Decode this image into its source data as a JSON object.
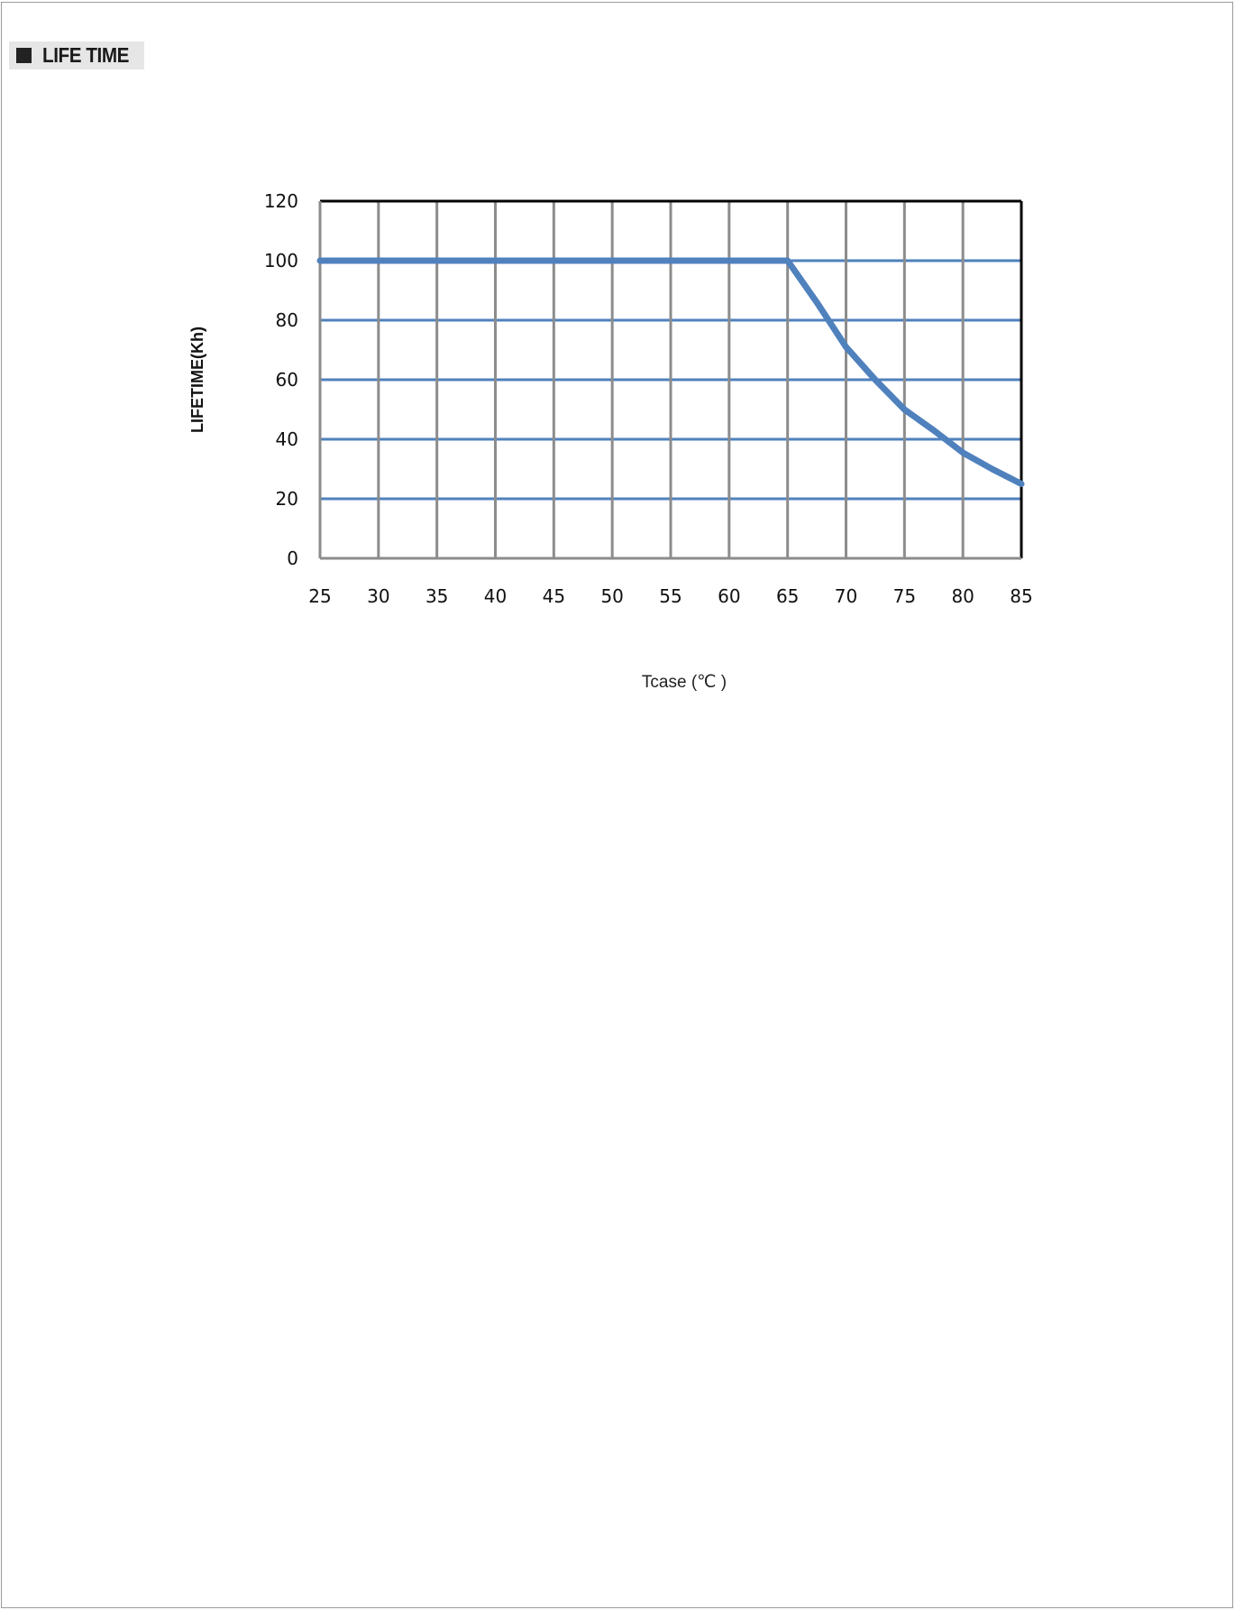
{
  "header": {
    "title": "LIFE TIME"
  },
  "chart_data": {
    "type": "line",
    "title": "",
    "xlabel": "Tcase (℃ )",
    "ylabel": "LIFETIME(Kh)",
    "x_ticks": [
      "25",
      "30",
      "35",
      "40",
      "45",
      "50",
      "55",
      "60",
      "65",
      "70",
      "75",
      "80",
      "85"
    ],
    "y_ticks": [
      "0",
      "20",
      "40",
      "60",
      "80",
      "100",
      "120"
    ],
    "xlim": [
      25,
      85
    ],
    "ylim": [
      0,
      120
    ],
    "grid": true,
    "series": [
      {
        "x": [
          25,
          30,
          35,
          40,
          45,
          50,
          55,
          60,
          65,
          67.5,
          70,
          72.5,
          75,
          77.5,
          80,
          82.5,
          85
        ],
        "y": [
          100,
          100,
          100,
          100,
          100,
          100,
          100,
          100,
          100,
          86,
          71,
          60,
          50,
          43,
          35.5,
          30,
          25
        ]
      }
    ],
    "colors": {
      "line": "#4f81bd",
      "h_grid": "#4f81bd",
      "v_grid": "#8c8c8c",
      "frame": "#000000"
    }
  }
}
